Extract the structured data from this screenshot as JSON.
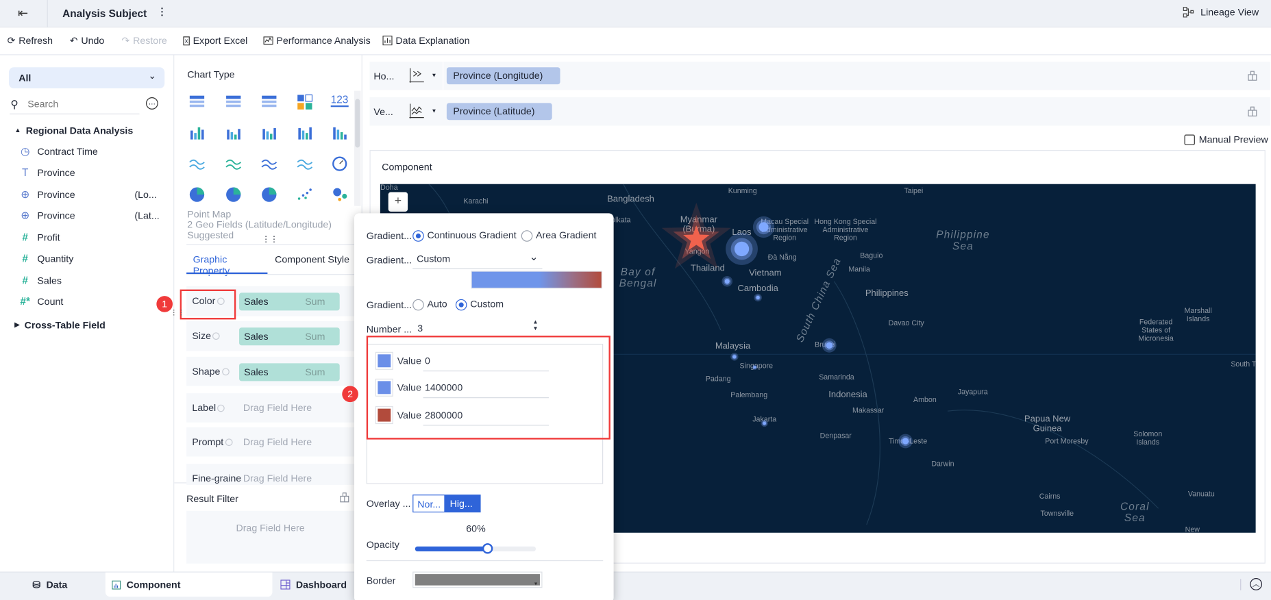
{
  "header": {
    "title": "Analysis Subject",
    "lineage_view": "Lineage View"
  },
  "toolbar": {
    "refresh": "Refresh",
    "undo": "Undo",
    "restore": "Restore",
    "export_excel": "Export Excel",
    "performance_analysis": "Performance Analysis",
    "data_explanation": "Data Explanation"
  },
  "left": {
    "filter_value": "All",
    "search_placeholder": "Search",
    "group": "Regional Data Analysis",
    "fields": [
      {
        "icon": "clock-icon",
        "label": "Contract Time",
        "suffix": ""
      },
      {
        "icon": "text-icon",
        "label": "Province",
        "suffix": ""
      },
      {
        "icon": "globe-icon",
        "label": "Province",
        "suffix": "(Lo..."
      },
      {
        "icon": "globe-icon",
        "label": "Province",
        "suffix": "(Lat..."
      },
      {
        "icon": "hash-icon",
        "label": "Profit",
        "suffix": ""
      },
      {
        "icon": "hash-icon",
        "label": "Quantity",
        "suffix": ""
      },
      {
        "icon": "hash-icon",
        "label": "Sales",
        "suffix": ""
      },
      {
        "icon": "hash-calc-icon",
        "label": "Count",
        "suffix": ""
      }
    ],
    "group2": "Cross-Table Field"
  },
  "middle": {
    "chart_type_title": "Chart Type",
    "number_icon_text": "123",
    "hint": {
      "name": "Point Map",
      "line2": "2 Geo Fields (Latitude/Longitude)",
      "line3": "Suggested"
    },
    "tabs": [
      "Graphic Property",
      "Component Style"
    ],
    "properties": [
      {
        "label": "Color",
        "field": "Sales",
        "agg": "Sum"
      },
      {
        "label": "Size",
        "field": "Sales",
        "agg": "Sum"
      },
      {
        "label": "Shape",
        "field": "Sales",
        "agg": "Sum"
      },
      {
        "label": "Label",
        "placeholder": "Drag Field Here"
      },
      {
        "label": "Prompt",
        "placeholder": "Drag Field Here"
      },
      {
        "label": "Fine-grained",
        "placeholder": "Drag Field Here"
      }
    ],
    "result_filter": "Result Filter",
    "result_placeholder": "Drag Field Here"
  },
  "axes": {
    "horizontal_label": "Ho...",
    "horizontal_field": "Province (Longitude)",
    "vertical_label": "Ve...",
    "vertical_field": "Province (Latitude)",
    "manual_preview": "Manual Preview",
    "manual_preview_checked": false
  },
  "component": {
    "title": "Component",
    "zoom_in": "+"
  },
  "map": {
    "labels": [
      "Doha",
      "Karachi",
      "Bangladesh",
      "Kunming",
      "Taipei",
      "Kolkata",
      "Myanmar\n(Burma)",
      "Macau Special\nAdministrative\nRegion",
      "Hong Kong Special\nAdministrative\nRegion",
      "Laos",
      "Philippine\nSea",
      "Yangon",
      "Đà Nẵng",
      "Bay of\nBengal",
      "Baguio",
      "Manila",
      "Thailand",
      "Vietnam",
      "Cambodia",
      "Philippines",
      "South China Sea",
      "Davao City",
      "Marshall\nIslands",
      "Federated\nStates of\nMicronesia",
      "Malaysia",
      "Brunei",
      "South Tara",
      "Singapore",
      "Padang",
      "Samarinda",
      "Palembang",
      "Indonesia",
      "Ambon",
      "Jayapura",
      "Makassar",
      "Jakarta",
      "Papua New\nGuinea",
      "Port Moresby",
      "Solomon\nIslands",
      "Denpasar",
      "Timor-Leste",
      "Darwin",
      "Cairns",
      "Vanuatu",
      "Townsville",
      "Coral\nSea",
      "New"
    ],
    "point_color": "#7fa8ff",
    "highlight_color": "#f0624d"
  },
  "popup": {
    "gradient_type_label": "Gradient...",
    "gradient_types": [
      "Continuous Gradient",
      "Area Gradient"
    ],
    "gradient_type_selected": "Continuous Gradient",
    "gradient_scheme_label": "Gradient...",
    "gradient_scheme": "Custom",
    "gradient_range_label": "Gradient...",
    "gradient_ranges": [
      "Auto",
      "Custom"
    ],
    "gradient_range_selected": "Custom",
    "number_label": "Number ...",
    "number_value": "3",
    "stops": [
      {
        "label": "Value",
        "value": "0",
        "color": "#6b8fe8"
      },
      {
        "label": "Value",
        "value": "1400000",
        "color": "#6b8fe8"
      },
      {
        "label": "Value",
        "value": "2800000",
        "color": "#b24b3c"
      }
    ],
    "overlay_label": "Overlay ...",
    "overlay_options": [
      "Nor...",
      "Hig..."
    ],
    "overlay_selected": "Hig...",
    "opacity_label": "Opacity",
    "opacity_value": "60%",
    "opacity_fraction": 0.6,
    "border_label": "Border",
    "border_color": "#808080"
  },
  "annotations": [
    "1",
    "2"
  ],
  "bottom": {
    "tabs": [
      "Data",
      "Component",
      "Dashboard"
    ],
    "active": "Component"
  },
  "colors": {
    "accent": "#2f64d9",
    "tag": "#b0e0d8",
    "pill": "#b3c6ea",
    "highlight_box": "#f03a3a",
    "map_bg": "#07203a"
  }
}
